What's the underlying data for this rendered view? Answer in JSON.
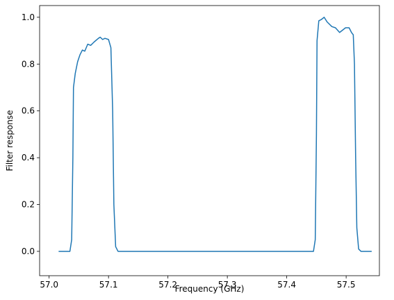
{
  "chart_data": {
    "type": "line",
    "x_label": "Frequency (GHz)",
    "y_label": "Filter response",
    "x": [
      57.016,
      57.035,
      57.038,
      57.04,
      57.041,
      57.044,
      57.048,
      57.052,
      57.056,
      57.06,
      57.065,
      57.07,
      57.076,
      57.083,
      57.086,
      57.09,
      57.094,
      57.1,
      57.104,
      57.107,
      57.109,
      57.112,
      57.116,
      57.445,
      57.448,
      57.45,
      57.451,
      57.454,
      57.458,
      57.463,
      57.468,
      57.476,
      57.482,
      57.489,
      57.494,
      57.499,
      57.505,
      57.509,
      57.512,
      57.514,
      57.516,
      57.518,
      57.521,
      57.525,
      57.543
    ],
    "series": [
      {
        "color": "#1f77b4",
        "values": [
          0,
          0,
          0.05,
          0.4,
          0.7,
          0.76,
          0.81,
          0.84,
          0.86,
          0.855,
          0.885,
          0.88,
          0.895,
          0.91,
          0.915,
          0.905,
          0.91,
          0.905,
          0.87,
          0.6,
          0.2,
          0.02,
          0,
          0,
          0.05,
          0.5,
          0.9,
          0.985,
          0.99,
          1.0,
          0.98,
          0.96,
          0.955,
          0.935,
          0.945,
          0.955,
          0.955,
          0.935,
          0.925,
          0.8,
          0.4,
          0.1,
          0.01,
          0,
          0
        ]
      }
    ],
    "xlim": [
      56.984,
      57.556
    ],
    "xticks": [
      {
        "value": 57.0,
        "label": "57.0"
      },
      57.1,
      57.2,
      57.3,
      57.4,
      57.5
    ],
    "ylim": [
      -0.104,
      1.05
    ],
    "yticks": [
      {
        "value": 0,
        "label": "0.0"
      },
      0.2,
      0.4,
      0.6,
      0.8,
      {
        "value": 1,
        "label": "1.0"
      }
    ]
  }
}
